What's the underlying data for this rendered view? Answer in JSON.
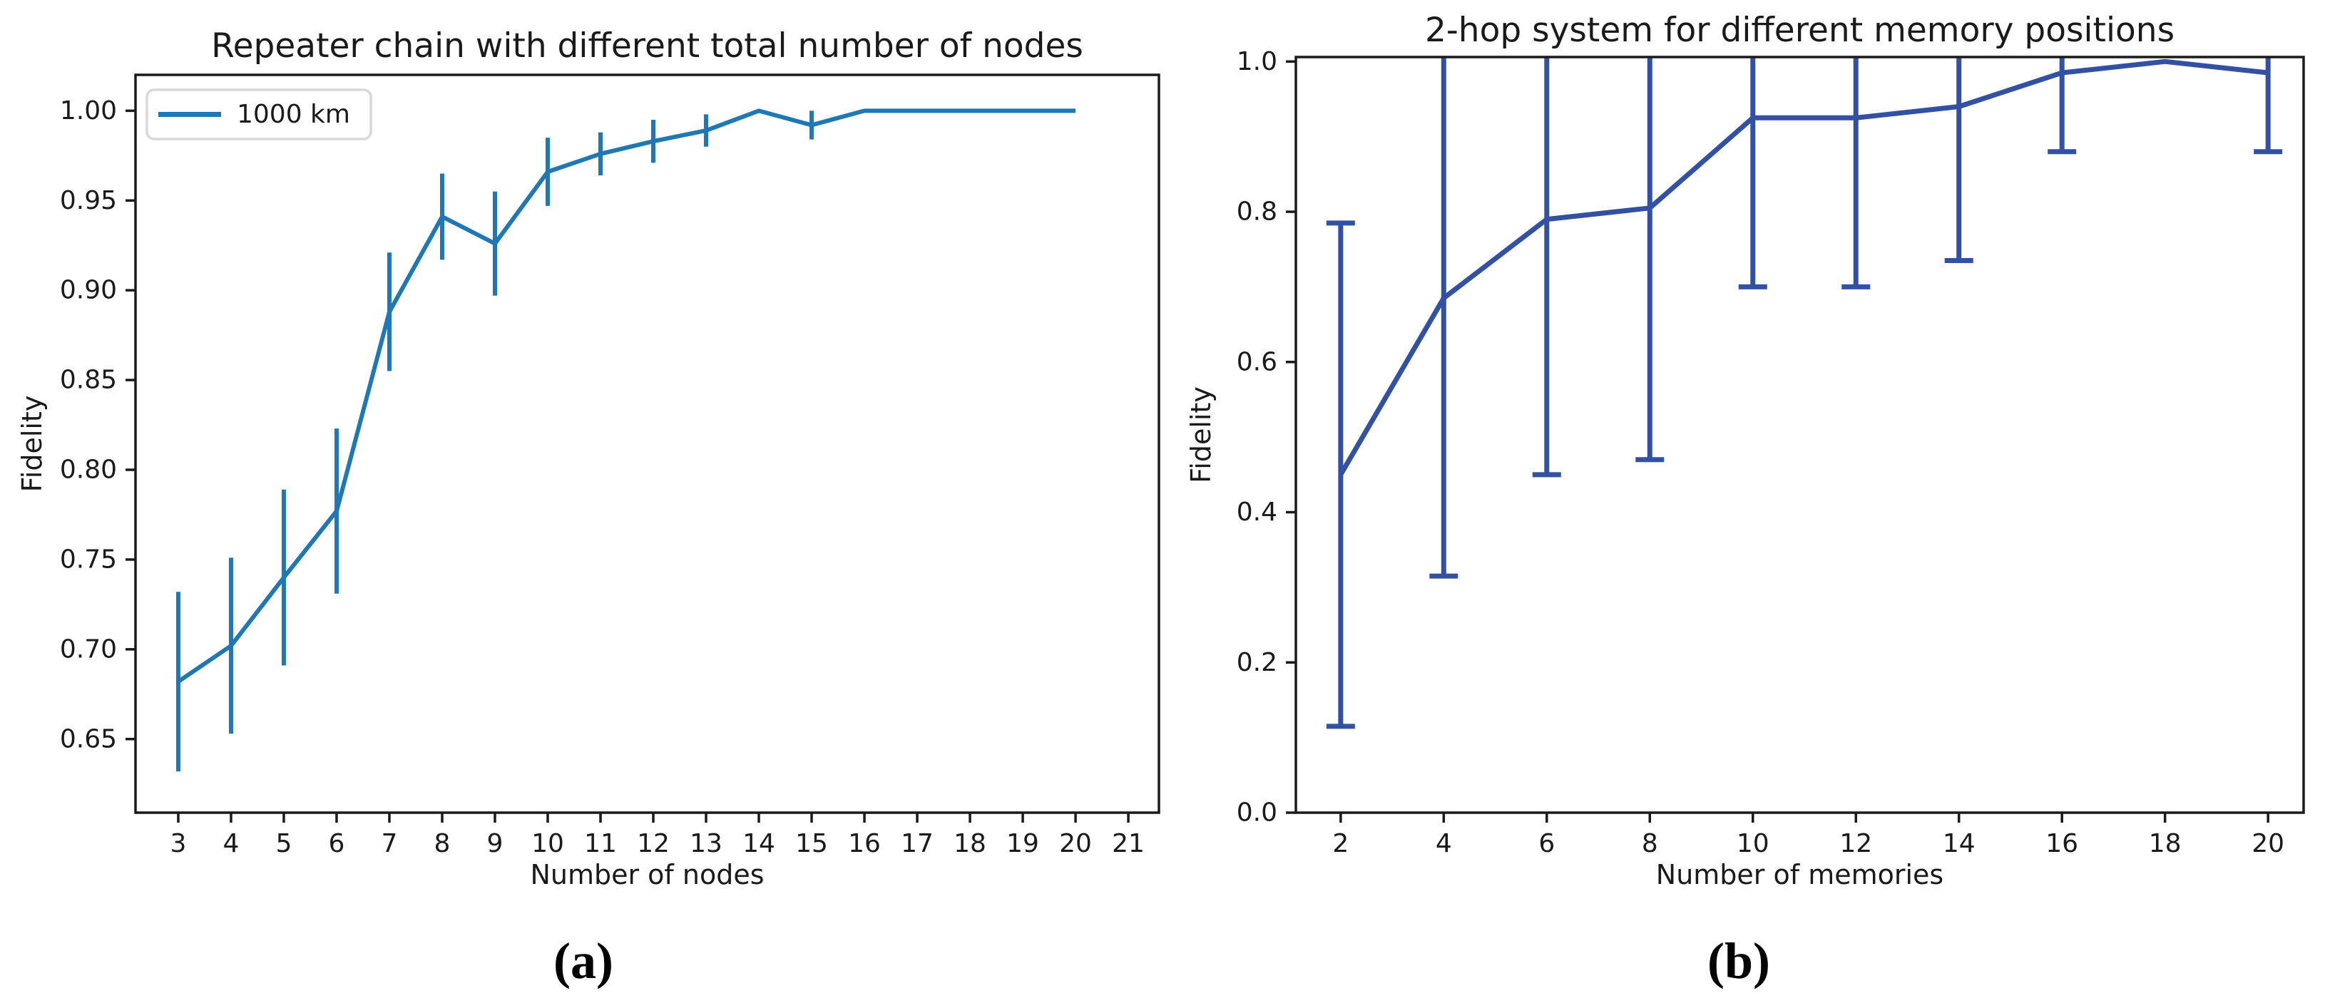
{
  "figure": {
    "captions": [
      {
        "label": "(a)"
      },
      {
        "label": "(b)"
      }
    ]
  },
  "chart_data": [
    {
      "name": "chart-a",
      "type": "line",
      "title": "Repeater chain with different total number of nodes",
      "xlabel": "Number of nodes",
      "ylabel": "Fidelity",
      "line_color": "#1f77b4",
      "error_caps": false,
      "grid": false,
      "legend": {
        "position": "upper left",
        "entries": [
          {
            "label": "1000 km",
            "color": "#1f77b4"
          }
        ]
      },
      "x": [
        3,
        4,
        5,
        6,
        7,
        8,
        9,
        10,
        11,
        12,
        13,
        14,
        15,
        16,
        17,
        18,
        19,
        20
      ],
      "y": [
        0.682,
        0.702,
        0.74,
        0.777,
        0.888,
        0.941,
        0.926,
        0.966,
        0.976,
        0.983,
        0.989,
        1.0,
        0.992,
        1.0,
        1.0,
        1.0,
        1.0,
        1.0
      ],
      "yerr": [
        0.05,
        0.049,
        0.049,
        0.046,
        0.033,
        0.024,
        0.029,
        0.019,
        0.012,
        0.012,
        0.009,
        0,
        0.008,
        0,
        0,
        0,
        0,
        0
      ],
      "xticks": [
        3,
        4,
        5,
        6,
        7,
        8,
        9,
        10,
        11,
        12,
        13,
        14,
        15,
        16,
        17,
        18,
        19,
        20,
        21
      ],
      "xtick_labels": [
        "3",
        "4",
        "5",
        "6",
        "7",
        "8",
        "9",
        "10",
        "11",
        "12",
        "13",
        "14",
        "15",
        "16",
        "17",
        "18",
        "19",
        "20",
        "21"
      ],
      "yticks": [
        0.65,
        0.7,
        0.75,
        0.8,
        0.85,
        0.9,
        0.95,
        1.0
      ],
      "ytick_labels": [
        "0.65",
        "0.70",
        "0.75",
        "0.80",
        "0.85",
        "0.90",
        "0.95",
        "1.00"
      ],
      "xlim": [
        2.19,
        21.58
      ],
      "ylim": [
        0.609,
        1.02
      ]
    },
    {
      "name": "chart-b",
      "type": "line",
      "title": "2-hop system for different memory positions",
      "xlabel": "Number of memories",
      "ylabel": "Fidelity",
      "line_color": "#3351a3",
      "error_caps": true,
      "grid": false,
      "legend": {
        "position": "none",
        "entries": []
      },
      "x": [
        2,
        4,
        6,
        8,
        10,
        12,
        14,
        16,
        18,
        20
      ],
      "y": [
        0.45,
        0.685,
        0.79,
        0.805,
        0.925,
        0.925,
        0.94,
        0.985,
        1.0,
        0.985
      ],
      "yerr": [
        0.335,
        0.37,
        0.34,
        0.335,
        0.225,
        0.225,
        0.205,
        0.105,
        0,
        0.105
      ],
      "xticks": [
        2,
        4,
        6,
        8,
        10,
        12,
        14,
        16,
        18,
        20
      ],
      "xtick_labels": [
        "2",
        "4",
        "6",
        "8",
        "10",
        "12",
        "14",
        "16",
        "18",
        "20"
      ],
      "yticks": [
        0.0,
        0.2,
        0.4,
        0.6,
        0.8,
        1.0
      ],
      "ytick_labels": [
        "0.0",
        "0.2",
        "0.4",
        "0.6",
        "0.8",
        "1.0"
      ],
      "xlim": [
        1.13,
        20.69
      ],
      "ylim": [
        0.0,
        1.006
      ]
    }
  ]
}
